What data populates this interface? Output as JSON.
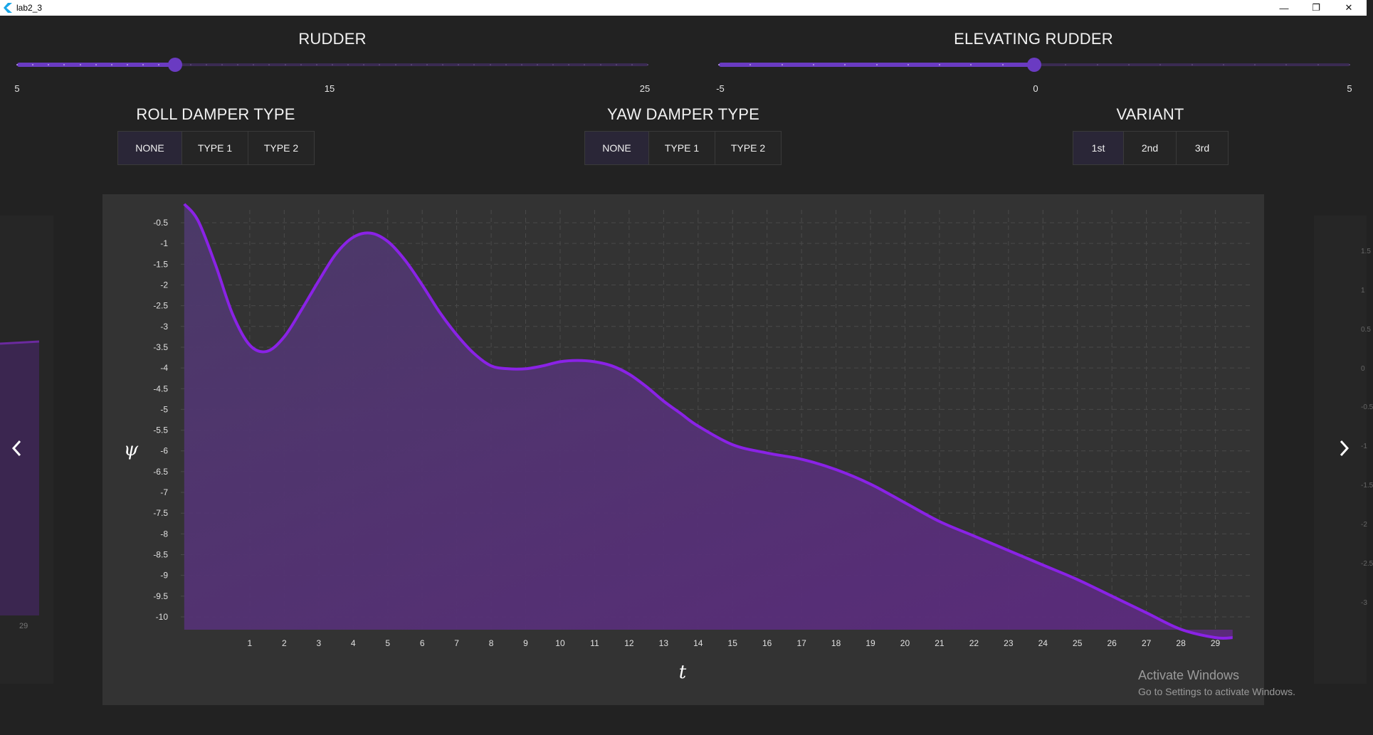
{
  "window": {
    "title": "lab2_3",
    "controls": [
      "—",
      "❐",
      "✕"
    ]
  },
  "rudder": {
    "title": "RUDDER",
    "min_label": "5",
    "mid_label": "15",
    "max_label": "25",
    "min": 5,
    "max": 25,
    "value": 10
  },
  "elevating_rudder": {
    "title": "ELEVATING RUDDER",
    "min_label": "-5",
    "mid_label": "0",
    "max_label": "5",
    "min": -5,
    "max": 5,
    "value": 0
  },
  "roll_damper": {
    "title": "ROLL DAMPER TYPE",
    "options": [
      "NONE",
      "TYPE 1",
      "TYPE 2"
    ],
    "selected": "NONE"
  },
  "yaw_damper": {
    "title": "YAW DAMPER TYPE",
    "options": [
      "NONE",
      "TYPE 1",
      "TYPE 2"
    ],
    "selected": "NONE"
  },
  "variant": {
    "title": "VARIANT",
    "options": [
      "1st",
      "2nd",
      "3rd"
    ],
    "selected": "1st"
  },
  "nav": {
    "prev_icon": "chevron-left-icon",
    "next_icon": "chevron-right-icon"
  },
  "left_preview": {
    "tick_label": "29"
  },
  "right_preview": {
    "tick_labels": [
      "1.5",
      "1",
      "0.5",
      "0",
      "-0.5",
      "-1",
      "-1.5",
      "-2",
      "-2.5",
      "-3"
    ]
  },
  "chart_data": {
    "type": "area",
    "ylabel": "ψ",
    "xlabel": "t",
    "xlim": [
      -1,
      30
    ],
    "ylim": [
      -10.3,
      -0.05
    ],
    "grid": true,
    "x_ticks": [
      1,
      2,
      3,
      4,
      5,
      6,
      7,
      8,
      9,
      10,
      11,
      12,
      13,
      14,
      15,
      16,
      17,
      18,
      19,
      20,
      21,
      22,
      23,
      24,
      25,
      26,
      27,
      28,
      29
    ],
    "y_ticks": [
      -0.5,
      -1,
      -1.5,
      -2,
      -2.5,
      -3,
      -3.5,
      -4,
      -4.5,
      -5,
      -5.5,
      -6,
      -6.5,
      -7,
      -7.5,
      -8,
      -8.5,
      -9,
      -9.5,
      -10
    ],
    "x_tick_labels": [
      "1",
      "2",
      "3",
      "4",
      "5",
      "6",
      "7",
      "8",
      "9",
      "10",
      "11",
      "12",
      "13",
      "14",
      "15",
      "16",
      "17",
      "18",
      "19",
      "20",
      "21",
      "22",
      "23",
      "24",
      "25",
      "26",
      "27",
      "28",
      "29"
    ],
    "y_tick_labels": [
      "-0.5",
      "-1",
      "-1.5",
      "-2",
      "-2.5",
      "-3",
      "-3.5",
      "-4",
      "-4.5",
      "-5",
      "-5.5",
      "-6",
      "-6.5",
      "-7",
      "-7.5",
      "-8",
      "-8.5",
      "-9",
      "-9.5",
      "-10"
    ],
    "series": [
      {
        "color": "#8a22e6",
        "x": [
          -0.9,
          -0.5,
          0,
          0.5,
          1,
          1.5,
          2,
          2.5,
          3,
          3.5,
          4,
          4.5,
          5,
          5.5,
          6,
          6.5,
          7,
          7.5,
          8,
          8.5,
          9,
          9.5,
          10,
          10.5,
          11,
          11.5,
          12,
          12.5,
          13,
          13.5,
          14,
          15,
          16,
          17,
          18,
          19,
          20,
          21,
          22,
          23,
          24,
          25,
          26,
          27,
          28,
          29,
          29.5
        ],
        "y": [
          -0.05,
          -0.45,
          -1.5,
          -2.7,
          -3.45,
          -3.6,
          -3.25,
          -2.6,
          -1.9,
          -1.25,
          -0.85,
          -0.75,
          -0.95,
          -1.4,
          -2.0,
          -2.65,
          -3.2,
          -3.65,
          -3.95,
          -4.02,
          -4.02,
          -3.95,
          -3.85,
          -3.82,
          -3.85,
          -3.95,
          -4.15,
          -4.45,
          -4.8,
          -5.1,
          -5.4,
          -5.85,
          -6.05,
          -6.2,
          -6.45,
          -6.8,
          -7.25,
          -7.7,
          -8.05,
          -8.4,
          -8.75,
          -9.1,
          -9.5,
          -9.9,
          -10.3,
          -10.5,
          -10.5
        ]
      }
    ]
  },
  "watermark": {
    "line1": "Activate Windows",
    "line2": "Go to Settings to activate Windows."
  }
}
